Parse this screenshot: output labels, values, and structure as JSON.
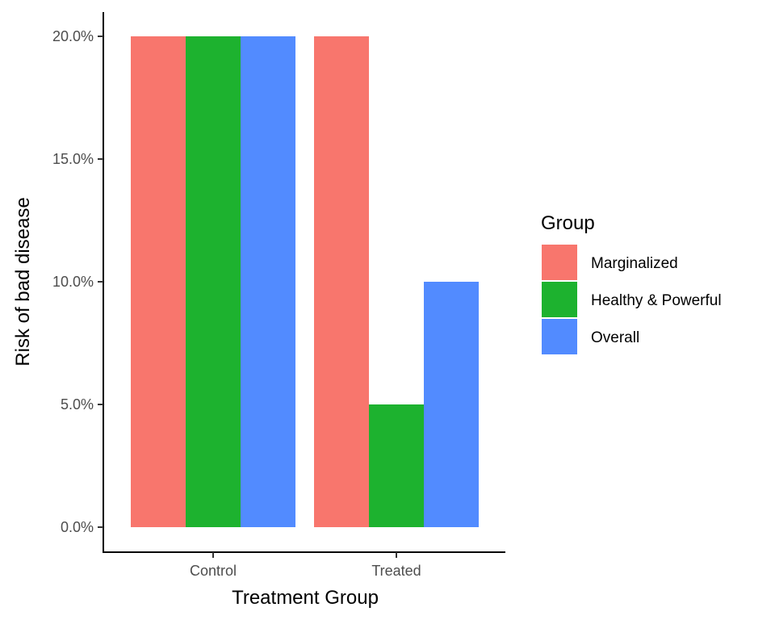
{
  "chart_data": {
    "type": "bar",
    "categories": [
      "Control",
      "Treated"
    ],
    "series": [
      {
        "name": "Marginalized",
        "values": [
          0.2,
          0.2
        ],
        "color": "#F8766D"
      },
      {
        "name": "Healthy & Powerful",
        "values": [
          0.2,
          0.05
        ],
        "color": "#1DB22F"
      },
      {
        "name": "Overall",
        "values": [
          0.2,
          0.1
        ],
        "color": "#528BFF"
      }
    ],
    "ylim": [
      -0.01,
      0.205
    ],
    "yticks": [
      0,
      0.05,
      0.1,
      0.15,
      0.2
    ],
    "ytick_labels": [
      "0.0%",
      "5.0%",
      "10.0%",
      "15.0%",
      "20.0%"
    ],
    "xlabel": "Treatment Group",
    "ylabel": "Risk of bad disease",
    "legend": {
      "title": "Group",
      "position": "right"
    },
    "grid": false
  }
}
